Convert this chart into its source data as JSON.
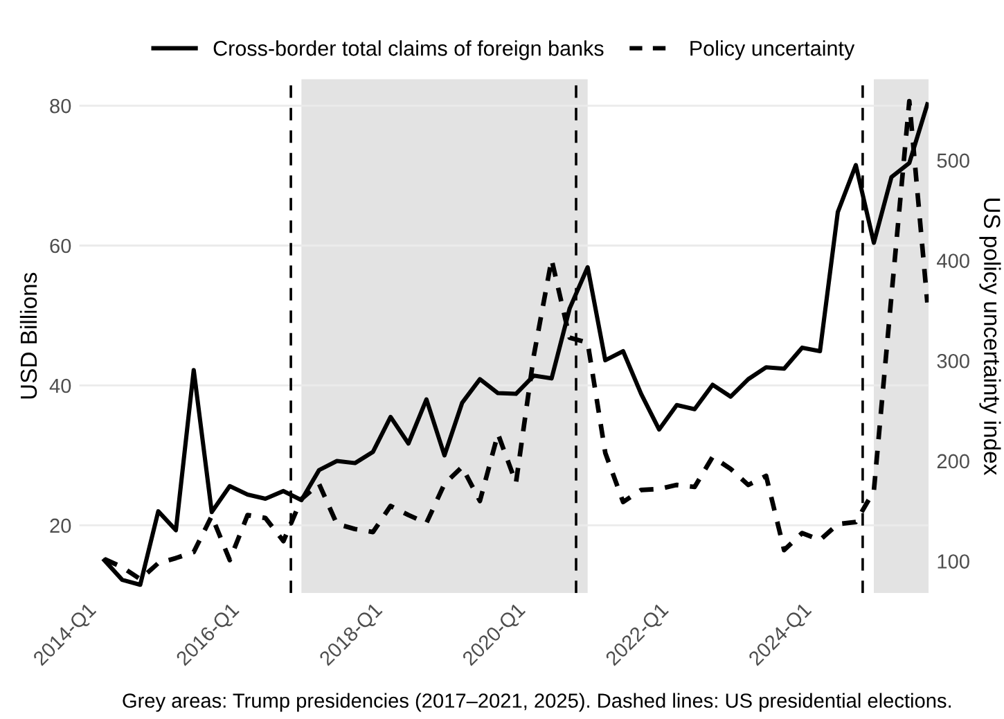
{
  "chart_data": {
    "type": "line",
    "ylabel": "USD Billions",
    "y2label": "US policy uncertainty index",
    "annotations": [
      "Grey areas: Trump presidencies (2017–2021, 2025). Dashed lines: US presidential elections."
    ],
    "x": [
      "2014-04",
      "2014-07",
      "2014-10",
      "2015-01",
      "2015-04",
      "2015-07",
      "2015-10",
      "2016-01",
      "2016-04",
      "2016-07",
      "2016-10",
      "2017-01",
      "2017-04",
      "2017-07",
      "2017-10",
      "2018-01",
      "2018-04",
      "2018-07",
      "2018-10",
      "2019-01",
      "2019-04",
      "2019-07",
      "2019-10",
      "2020-01",
      "2020-04",
      "2020-07",
      "2020-10",
      "2021-01",
      "2021-04",
      "2021-07",
      "2021-10",
      "2022-01",
      "2022-04",
      "2022-07",
      "2022-10",
      "2023-01",
      "2023-04",
      "2023-07",
      "2023-10",
      "2024-01",
      "2024-04",
      "2024-07",
      "2024-10",
      "2025-01",
      "2025-04",
      "2025-07",
      "2025-10"
    ],
    "series": [
      {
        "name": "Cross-border total claims of foreign banks",
        "color": "#000000",
        "line_style": "solid",
        "values": [
          15.0,
          12.2,
          11.5,
          22.0,
          19.3,
          42.2,
          21.9,
          25.6,
          24.4,
          23.8,
          24.9,
          23.6,
          27.9,
          29.2,
          28.9,
          30.5,
          35.5,
          31.7,
          38.0,
          30.0,
          37.5,
          40.9,
          38.9,
          38.8,
          41.4,
          41.0,
          51.0,
          56.9,
          43.6,
          44.9,
          38.8,
          33.7,
          37.2,
          36.6,
          40.1,
          38.4,
          40.9,
          42.6,
          42.4,
          45.4,
          44.9,
          64.8,
          71.5,
          60.4,
          69.8,
          71.8,
          80.2
        ]
      },
      {
        "name": "Policy uncertainty",
        "color": "#000000",
        "line_style": "dotted",
        "axis": "y2",
        "values": [
          102,
          94,
          82,
          98,
          103,
          109,
          145,
          101,
          146,
          143,
          120,
          162,
          177,
          137,
          132,
          129,
          155,
          146,
          138,
          177,
          194,
          160,
          227,
          178,
          305,
          401,
          323,
          318,
          208,
          159,
          171,
          172,
          176,
          174,
          204,
          192,
          176,
          185,
          111,
          128,
          121,
          137,
          139,
          170,
          365,
          559,
          358
        ]
      }
    ],
    "xlim": [
      "2013-11-24",
      "2025-10-08"
    ],
    "xticks": [
      {
        "value": "2014-01",
        "label": "2014-Q1"
      },
      {
        "value": "2016-01",
        "label": "2016-Q1"
      },
      {
        "value": "2018-01",
        "label": "2018-Q1"
      },
      {
        "value": "2020-01",
        "label": "2020-Q1"
      },
      {
        "value": "2022-01",
        "label": "2022-Q1"
      },
      {
        "value": "2024-01",
        "label": "2024-Q1"
      }
    ],
    "ylim": [
      10.3,
      83.8
    ],
    "yticks": [
      20,
      40,
      60,
      80
    ],
    "y2lim": [
      68,
      581
    ],
    "y2ticks": [
      100,
      200,
      300,
      400,
      500
    ],
    "ref_lines": [
      {
        "axis": "x",
        "value": "2016-11-08",
        "color": "#000000",
        "line_style": "dashed"
      },
      {
        "axis": "x",
        "value": "2020-11-03",
        "color": "#000000",
        "line_style": "dashed"
      },
      {
        "axis": "x",
        "value": "2024-11-05",
        "color": "#000000",
        "line_style": "dashed"
      }
    ],
    "bands": [
      {
        "axis": "x",
        "from": "2017-01",
        "to": "2021-01",
        "color": "#e3e3e3"
      },
      {
        "axis": "x",
        "from": "2025-01",
        "to": "2025-10-08",
        "color": "#e3e3e3"
      }
    ],
    "grid": true,
    "legend": "top",
    "marker": "none"
  }
}
